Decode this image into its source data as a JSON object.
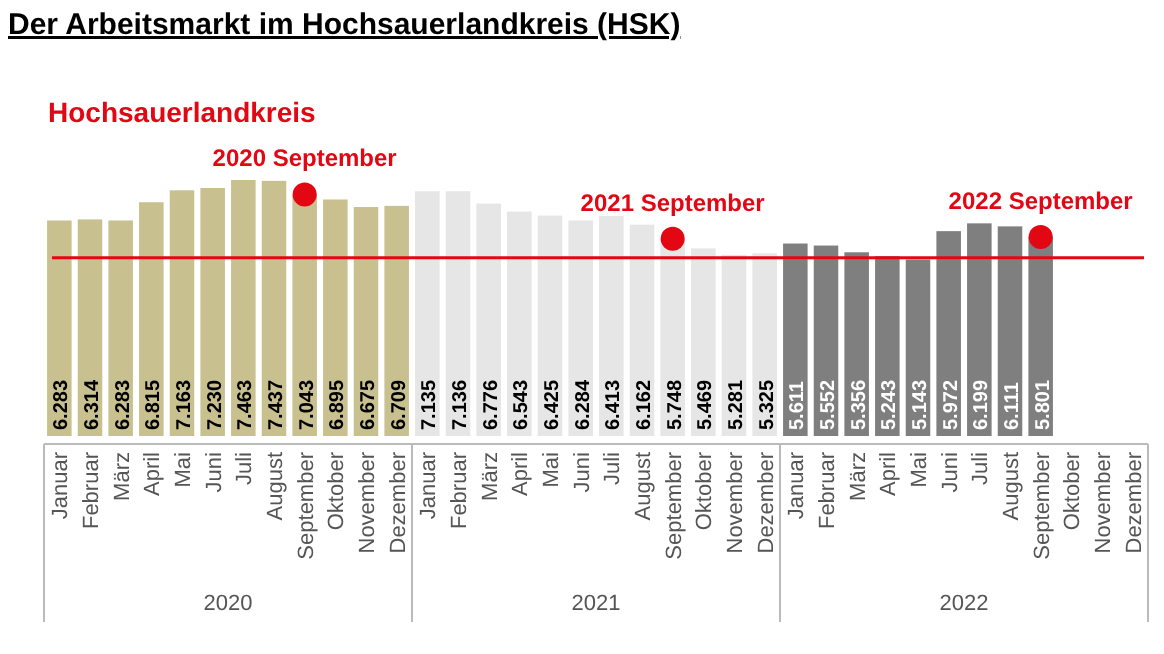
{
  "chart_data": {
    "type": "bar",
    "title": "Der Arbeitsmarkt im Hochsauerlandkreis (HSK)",
    "subtitle": "Hochsauerlandkreis",
    "categories": [
      "Januar",
      "Februar",
      "März",
      "April",
      "Mai",
      "Juni",
      "Juli",
      "August",
      "September",
      "Oktober",
      "November",
      "Dezember",
      "Januar",
      "Februar",
      "März",
      "April",
      "Mai",
      "Juni",
      "Juli",
      "August",
      "September",
      "Oktober",
      "November",
      "Dezember",
      "Januar",
      "Februar",
      "März",
      "April",
      "Mai",
      "Juni",
      "Juli",
      "August",
      "September",
      "Oktober",
      "November",
      "Dezember"
    ],
    "series": [
      {
        "color": "#c8c18f",
        "values": [
          6283,
          6314,
          6283,
          6815,
          7163,
          7230,
          7463,
          7437,
          7043,
          6895,
          6675,
          6709,
          null,
          null,
          null,
          null,
          null,
          null,
          null,
          null,
          null,
          null,
          null,
          null,
          null,
          null,
          null,
          null,
          null,
          null,
          null,
          null,
          null,
          null,
          null,
          null
        ],
        "value_labels": [
          "6.283",
          "6.314",
          "6.283",
          "6.815",
          "7.163",
          "7.230",
          "7.463",
          "7.437",
          "7.043",
          "6.895",
          "6.675",
          "6.709",
          null,
          null,
          null,
          null,
          null,
          null,
          null,
          null,
          null,
          null,
          null,
          null,
          null,
          null,
          null,
          null,
          null,
          null,
          null,
          null,
          null,
          null,
          null,
          null
        ]
      },
      {
        "color": "#e6e6e6",
        "values": [
          null,
          null,
          null,
          null,
          null,
          null,
          null,
          null,
          null,
          null,
          null,
          null,
          7135,
          7136,
          6776,
          6543,
          6425,
          6284,
          6413,
          6162,
          5748,
          5469,
          5281,
          5325,
          null,
          null,
          null,
          null,
          null,
          null,
          null,
          null,
          null,
          null,
          null,
          null
        ],
        "value_labels": [
          null,
          null,
          null,
          null,
          null,
          null,
          null,
          null,
          null,
          null,
          null,
          null,
          "7.135",
          "7.136",
          "6.776",
          "6.543",
          "6.425",
          "6.284",
          "6.413",
          "6.162",
          "5.748",
          "5.469",
          "5.281",
          "5.325",
          null,
          null,
          null,
          null,
          null,
          null,
          null,
          null,
          null,
          null,
          null,
          null
        ]
      },
      {
        "color": "#7f7f7f",
        "values": [
          null,
          null,
          null,
          null,
          null,
          null,
          null,
          null,
          null,
          null,
          null,
          null,
          null,
          null,
          null,
          null,
          null,
          null,
          null,
          null,
          null,
          null,
          null,
          null,
          5611,
          5552,
          5356,
          5243,
          5143,
          5972,
          6199,
          6111,
          5801,
          null,
          null,
          null
        ],
        "value_labels": [
          null,
          null,
          null,
          null,
          null,
          null,
          null,
          null,
          null,
          null,
          null,
          null,
          null,
          null,
          null,
          null,
          null,
          null,
          null,
          null,
          null,
          null,
          null,
          null,
          "5.611",
          "5.552",
          "5.356",
          "5.243",
          "5.143",
          "5.972",
          "6.199",
          "6.111",
          "5.801",
          null,
          null,
          null
        ]
      },
      {
        "type": "scatter",
        "color": "#e30613",
        "marker": "circle",
        "values": [
          null,
          null,
          null,
          null,
          null,
          null,
          null,
          null,
          7043,
          null,
          null,
          null,
          null,
          null,
          null,
          null,
          null,
          null,
          null,
          null,
          5748,
          null,
          null,
          null,
          null,
          null,
          null,
          null,
          null,
          null,
          null,
          null,
          5801,
          null,
          null,
          null
        ]
      }
    ],
    "ref_lines": [
      {
        "axis": "y",
        "value": 5200,
        "color": "#e30613",
        "line_style": "solid"
      }
    ],
    "annotations": [
      "2020 September",
      "2021 September",
      "2022 September",
      "2020",
      "2021",
      "2022"
    ],
    "tick_labels": "x",
    "grid": false
  }
}
